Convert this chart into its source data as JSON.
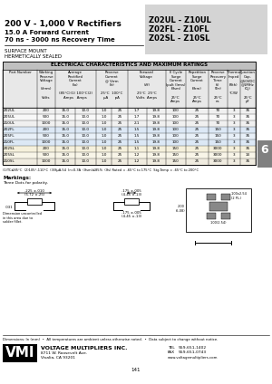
{
  "title_left1": "200 V - 1,000 V Rectifiers",
  "title_left2": "15.0 A Forward Current",
  "title_left3": "70 ns - 3000 ns Recovery Time",
  "title_right1": "Z02UL - Z10UL",
  "title_right2": "Z02FL - Z10FL",
  "title_right3": "Z02SL - Z10SL",
  "subtitle1": "SURFACE MOUNT",
  "subtitle2": "HERMETICALLY SEALED",
  "table_title": "ELECTRICAL CHARACTERISTICS AND MAXIMUM RATINGS",
  "rows": [
    [
      "Z02UL",
      "200",
      "15.0",
      "10.0",
      "1.0",
      "25",
      "1.7",
      "19.8",
      "100",
      "25",
      "70",
      "3",
      "35"
    ],
    [
      "Z05UL",
      "500",
      "15.0",
      "10.0",
      "1.0",
      "25",
      "1.7",
      "19.8",
      "100",
      "25",
      "70",
      "3",
      "35"
    ],
    [
      "Z10UL",
      "1000",
      "15.0",
      "10.0",
      "1.0",
      "25",
      "2.1",
      "19.8",
      "100",
      "25",
      "70",
      "3",
      "35"
    ],
    [
      "Z02FL",
      "200",
      "15.0",
      "10.0",
      "1.0",
      "25",
      "1.5",
      "19.8",
      "100",
      "25",
      "150",
      "3",
      "35"
    ],
    [
      "Z05FL",
      "500",
      "15.0",
      "10.0",
      "1.0",
      "25",
      "1.5",
      "19.8",
      "100",
      "25",
      "150",
      "3",
      "35"
    ],
    [
      "Z10FL",
      "1000",
      "15.0",
      "10.0",
      "1.0",
      "25",
      "1.5",
      "19.8",
      "100",
      "25",
      "150",
      "3",
      "35"
    ],
    [
      "Z02SL",
      "200",
      "15.0",
      "10.0",
      "1.0",
      "25",
      "1.1",
      "19.8",
      "150",
      "25",
      "3000",
      "3",
      "35"
    ],
    [
      "Z05SL",
      "500",
      "15.0",
      "10.0",
      "1.0",
      "25",
      "1.2",
      "19.8",
      "150",
      "25",
      "3000",
      "3",
      "14"
    ],
    [
      "Z10SL",
      "1000",
      "15.0",
      "10.0",
      "1.0",
      "25",
      "1.2",
      "19.8",
      "150",
      "25",
      "3000",
      "3",
      "35"
    ]
  ],
  "footnote": "(1)TC≤85°C  (2)105°-110°C  (3)8μA-54  Ir=0.3A  (Ifsm)≤85%  (Ifs) Rated = -65°C to 175°C  Stg-Temp = -65°C to 200°C",
  "markings_label": "Markings:",
  "markings_note": "Three Dots for polarity.",
  "dim1_label1": ".225 ±.010",
  "dim1_label2": "(5.72 ±.25)",
  "dim2_label": ".031",
  "dim3_label": "Dimension uncontrolled\nin this area due to\nsolder fillet.",
  "dim4_label1": ".175 ±.005",
  "dim4_label2": "(4.45 ±.13)",
  "dim5_label1": ".175 ±.005",
  "dim5_label2": "(4.45 ±.13)",
  "dim6_label": ".100x2.54\n(2 PL.)",
  "dim7_label": ".200\n(5.08)",
  "dim8_label": ".100(2.54)",
  "footer_note": "Dimensions: In (mm)  •  All temperatures are ambient unless otherwise noted.  •  Data subject to change without notice.",
  "company": "VOLTAGE MULTIPLIERS INC.",
  "address1": "8711 W. Roosevelt Ave.",
  "address2": "Visalia, CA 93201",
  "tel_label": "TEL",
  "tel_val": "559-651-1402",
  "fax_label": "FAX",
  "fax_val": "559-651-0743",
  "web": "www.voltagemultipliers.com",
  "page": "141",
  "tab_number": "6",
  "bg_color": "#ffffff",
  "gray_box_color": "#d4d4d4",
  "table_title_bg": "#c0c0c0",
  "tab_color": "#808080"
}
